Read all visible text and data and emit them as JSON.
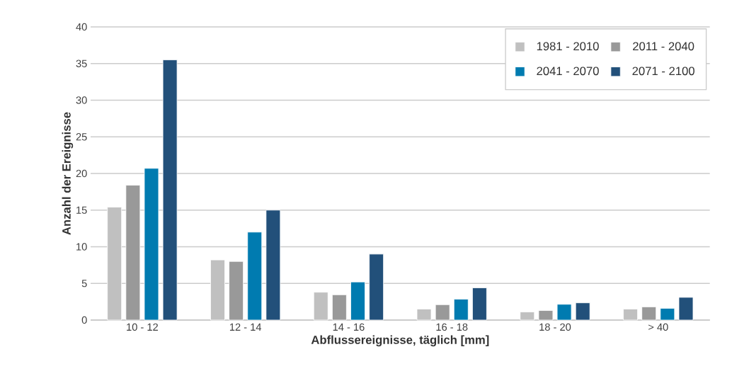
{
  "chart_data": {
    "type": "bar",
    "xlabel": "Abflussereignisse, täglich [mm]",
    "ylabel": "Anzahl der Ereignisse",
    "categories": [
      "10 - 12",
      "12 - 14",
      "14 - 16",
      "16 - 18",
      "18 - 20",
      "> 40"
    ],
    "series": [
      {
        "name": "1981 - 2010",
        "color": "#c0c0c0",
        "values": [
          15.4,
          8.2,
          3.8,
          1.5,
          1.1,
          1.5
        ]
      },
      {
        "name": "2011 - 2040",
        "color": "#999999",
        "values": [
          18.4,
          8.0,
          3.45,
          2.1,
          1.3,
          1.8
        ]
      },
      {
        "name": "2041 - 2070",
        "color": "#007bb0",
        "values": [
          20.7,
          12.0,
          5.2,
          2.85,
          2.15,
          1.6
        ]
      },
      {
        "name": "2071 - 2100",
        "color": "#22507a",
        "values": [
          35.5,
          15.0,
          9.0,
          4.4,
          2.35,
          3.1
        ]
      }
    ],
    "ylim": [
      0,
      40
    ],
    "yticks": [
      0,
      5,
      10,
      15,
      20,
      25,
      30,
      35,
      40
    ],
    "grid": "y",
    "legend": "top right"
  }
}
